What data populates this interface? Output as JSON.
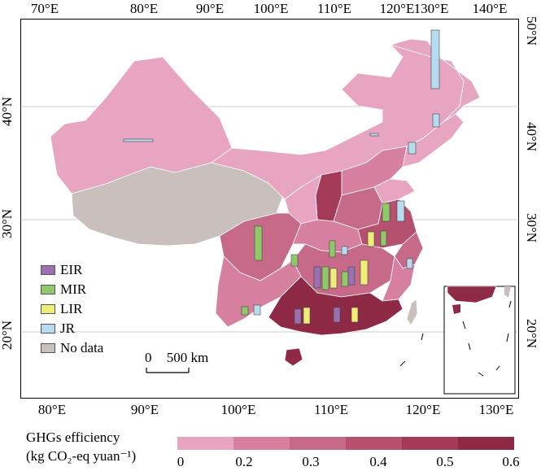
{
  "axes": {
    "top_ticks": [
      "70°E",
      "80°E",
      "90°E",
      "100°E",
      "110°E",
      "120°E",
      "130°E",
      "140°E"
    ],
    "bottom_ticks": [
      "80°E",
      "90°E",
      "100°E",
      "110°E",
      "120°E",
      "130°E"
    ],
    "left_ticks": [
      "40°N",
      "30°N",
      "20°N"
    ],
    "right_ticks": [
      "50°N",
      "40°N",
      "30°N",
      "20°N"
    ]
  },
  "legend": {
    "items": [
      {
        "label": "EIR",
        "color": "#9b6fb0"
      },
      {
        "label": "MIR",
        "color": "#8fc96a"
      },
      {
        "label": "LIR",
        "color": "#eded77"
      },
      {
        "label": "JR",
        "color": "#b7dcef"
      },
      {
        "label": "No data",
        "color": "#c9bfbd"
      }
    ]
  },
  "scalebar": {
    "left_label": "0",
    "right_label": "500 km"
  },
  "colorbar": {
    "title_line1": "GHGs efficiency",
    "title_line2": "(kg CO₂-eq yuan⁻¹)",
    "ticks": [
      "0",
      "0.2",
      "0.3",
      "0.4",
      "0.5",
      "0.6"
    ],
    "colors": [
      "#e8a5c1",
      "#d77f9f",
      "#c76a8a",
      "#b5516f",
      "#a23a58",
      "#8e2a46"
    ]
  }
}
